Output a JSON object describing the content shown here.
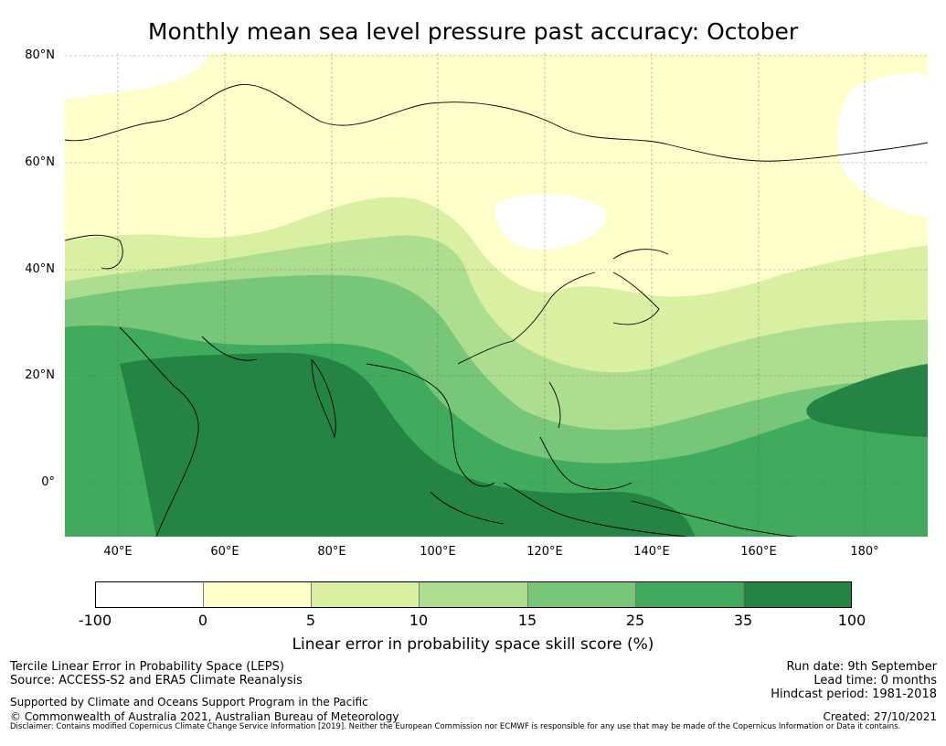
{
  "title": "Monthly mean sea level pressure past accuracy: October",
  "map": {
    "lat_labels": [
      "80°N",
      "60°N",
      "40°N",
      "20°N",
      "0°"
    ],
    "lon_labels": [
      "40°E",
      "60°E",
      "80°E",
      "100°E",
      "120°E",
      "140°E",
      "160°E",
      "180°"
    ],
    "extent": {
      "lon_min": 30,
      "lon_max": 192,
      "lat_min": -10,
      "lat_max": 80
    }
  },
  "colorbar": {
    "ticks": [
      "-100",
      "0",
      "5",
      "10",
      "15",
      "25",
      "35",
      "100"
    ],
    "colors": [
      "#ffffff",
      "#ffffcc",
      "#d9f0a3",
      "#addd8e",
      "#78c679",
      "#41ab5d",
      "#238443"
    ],
    "label": "Linear error in probability space skill score (%)"
  },
  "footer": {
    "left_line1": "Tercile Linear Error in Probability Space (LEPS)",
    "left_line2": "Source: ACCESS-S2 and ERA5 Climate Reanalysis",
    "supported": "Supported by Climate and Oceans Support Program in the Pacific",
    "copyright": "© Commonwealth of Australia 2021, Australian Bureau of Meteorology",
    "run_date": "Run date: 9th September",
    "lead_time": "Lead time: 0 months",
    "hindcast": "Hindcast period: 1981-2018",
    "created": "Created: 27/10/2021",
    "disclaimer": "Disclaimer: Contains modified Copernicus Climate Change Service Information [2019]. Neither the European Commission nor ECMWF is responsible for any use that may be made of the Copernicus Information or Data it contains."
  }
}
